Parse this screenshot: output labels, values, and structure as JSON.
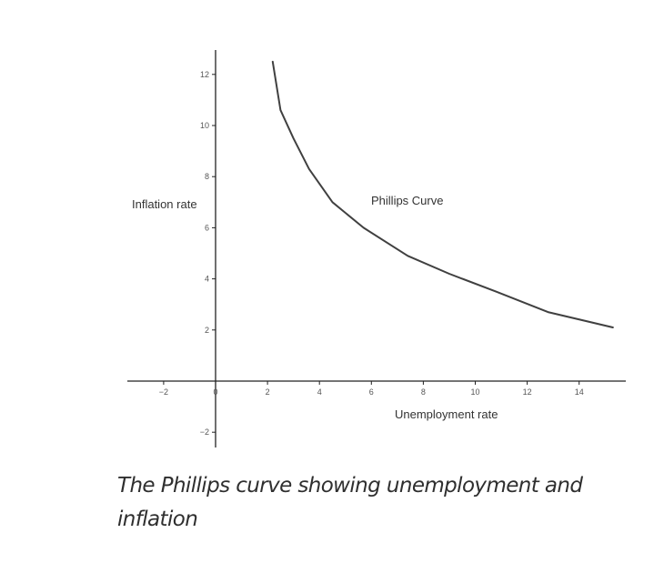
{
  "chart_data": {
    "type": "line",
    "title": "",
    "xlabel": "Unemployment rate",
    "ylabel": "Inflation rate",
    "xlim": [
      -3.5,
      16.5
    ],
    "ylim": [
      -2.6,
      13
    ],
    "x_ticks": [
      -2,
      0,
      2,
      4,
      6,
      8,
      10,
      12,
      14
    ],
    "x_tick_labels": [
      "−2",
      "0",
      "2",
      "4",
      "6",
      "8",
      "10",
      "12",
      "14"
    ],
    "y_ticks": [
      -2,
      2,
      4,
      6,
      8,
      10,
      12
    ],
    "y_tick_labels": [
      "−2",
      "2",
      "4",
      "6",
      "8",
      "10",
      "12"
    ],
    "grid": false,
    "annotation": "Phillips Curve",
    "series": [
      {
        "x": [
          2.2,
          2.5,
          3.0,
          3.6,
          4.5,
          5.7,
          7.4,
          9.0,
          10.8,
          12.8,
          15.3
        ],
        "y": [
          12.5,
          10.6,
          9.5,
          8.3,
          7.0,
          6.0,
          4.9,
          4.2,
          3.5,
          2.7,
          2.1
        ]
      }
    ],
    "line_color": "#404040",
    "axis_color": "#222222"
  },
  "caption": "The Phillips curve showing unemployment and inflation"
}
